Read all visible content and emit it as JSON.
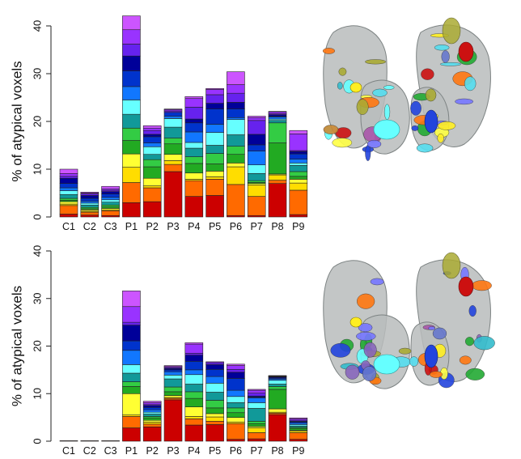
{
  "chart_data": [
    {
      "type": "bar",
      "stacked": true,
      "ylabel": "% of atypical voxels",
      "ylim": [
        0,
        40
      ],
      "yticks": [
        0,
        10,
        20,
        30,
        40
      ],
      "categories": [
        "C1",
        "C2",
        "C3",
        "P1",
        "P2",
        "P3",
        "P4",
        "P5",
        "P6",
        "P7",
        "P8",
        "P9"
      ],
      "segment_colors": [
        "#cc0000",
        "#ff6a00",
        "#ffdd00",
        "#ffff33",
        "#22aa22",
        "#33cc44",
        "#119999",
        "#66ffff",
        "#1177ff",
        "#0033cc",
        "#000099",
        "#6622ee",
        "#9933ff",
        "#cc55ff"
      ],
      "stacks": [
        [
          0.6,
          1.8,
          0.3,
          0.5,
          0.3,
          0.4,
          0.8,
          0.8,
          0.6,
          0.9,
          1.1,
          0.4,
          0.6,
          0.9
        ],
        [
          0.4,
          0.6,
          0.2,
          0.3,
          0.2,
          0.3,
          0.5,
          0.4,
          0.4,
          0.6,
          0.6,
          0.3,
          0.2,
          0.2
        ],
        [
          0.3,
          1.0,
          0.2,
          0.3,
          0.3,
          0.4,
          0.6,
          0.5,
          0.5,
          0.7,
          0.5,
          0.3,
          0.3,
          0.5
        ],
        [
          3.0,
          4.2,
          3.2,
          2.8,
          2.8,
          2.6,
          2.9,
          3.0,
          2.8,
          3.3,
          3.1,
          2.5,
          3.0,
          2.9
        ],
        [
          3.2,
          2.9,
          0.4,
          1.6,
          2.4,
          1.5,
          1.1,
          1.6,
          0.8,
          1.3,
          0.5,
          0.8,
          0.5,
          0.5
        ],
        [
          9.5,
          1.5,
          0.8,
          1.3,
          2.2,
          1.2,
          2.3,
          1.8,
          0.5,
          0.8,
          0.0,
          0.3,
          0.3,
          0.1
        ],
        [
          4.3,
          3.3,
          0.3,
          1.3,
          2.0,
          1.4,
          1.8,
          1.2,
          2.2,
          1.9,
          0.8,
          2.5,
          1.8,
          0.4
        ],
        [
          4.5,
          3.4,
          0.5,
          1.2,
          1.5,
          2.2,
          1.7,
          2.7,
          1.7,
          3.2,
          1.2,
          1.8,
          1.1,
          0.2
        ],
        [
          0.3,
          6.5,
          3.7,
          0.8,
          1.8,
          1.7,
          2.4,
          3.2,
          0.4,
          1.8,
          1.4,
          1.9,
          1.8,
          2.7
        ],
        [
          0.3,
          4.0,
          2.4,
          0.3,
          0.2,
          0.4,
          1.5,
          1.8,
          2.9,
          1.3,
          2.2,
          2.9,
          0.6,
          0.3
        ],
        [
          7.0,
          0.7,
          1.1,
          0.2,
          6.5,
          4.2,
          0.5,
          0.3,
          0.4,
          0.2,
          0.3,
          0.2,
          0.4,
          0.1
        ],
        [
          0.5,
          5.1,
          1.5,
          0.8,
          0.6,
          1.0,
          1.3,
          0.5,
          0.8,
          1.1,
          0.5,
          0.2,
          3.5,
          0.7
        ]
      ]
    },
    {
      "type": "bar",
      "stacked": true,
      "ylabel": "% of atypical voxels",
      "ylim": [
        0,
        40
      ],
      "yticks": [
        0,
        10,
        20,
        30,
        40
      ],
      "categories": [
        "C1",
        "C2",
        "C3",
        "P1",
        "P2",
        "P3",
        "P4",
        "P5",
        "P6",
        "P7",
        "P8",
        "P9"
      ],
      "segment_colors": [
        "#cc0000",
        "#ff6a00",
        "#ffdd00",
        "#ffff33",
        "#22aa22",
        "#33cc44",
        "#119999",
        "#66ffff",
        "#1177ff",
        "#0033cc",
        "#000099",
        "#6622ee",
        "#9933ff",
        "#cc55ff"
      ],
      "stacks": [
        [
          0.1
        ],
        [
          0.1
        ],
        [
          0.1
        ],
        [
          2.8,
          2.4,
          0.3,
          4.5,
          1.5,
          1.0,
          1.8,
          1.8,
          3.0,
          2.0,
          3.3,
          0.6,
          3.3,
          3.3
        ],
        [
          3.0,
          0.6,
          0.4,
          0.4,
          0.5,
          0.3,
          0.5,
          0.4,
          0.5,
          0.5,
          0.4,
          0.2,
          0.4,
          0.3
        ],
        [
          8.7,
          0.3,
          0.2,
          0.4,
          0.8,
          1.0,
          1.7,
          0.8,
          0.7,
          0.4,
          0.3,
          0.2,
          0.2,
          0.2
        ],
        [
          3.4,
          1.3,
          0.5,
          2.0,
          1.8,
          1.4,
          1.6,
          2.0,
          1.0,
          1.8,
          1.3,
          0.4,
          1.9,
          0.3
        ],
        [
          3.5,
          0.7,
          0.9,
          0.7,
          1.2,
          1.6,
          1.7,
          1.9,
          1.4,
          1.5,
          1.0,
          0.4,
          0.2,
          0.0
        ],
        [
          0.4,
          3.3,
          0.3,
          1.0,
          1.0,
          1.0,
          1.1,
          1.3,
          1.3,
          2.5,
          1.3,
          0.6,
          0.8,
          0.3
        ],
        [
          0.5,
          1.3,
          1.0,
          0.3,
          0.6,
          0.5,
          2.7,
          1.2,
          1.0,
          0.2,
          0.2,
          0.6,
          0.6,
          0.2
        ],
        [
          5.6,
          0.3,
          0.2,
          0.7,
          4.1,
          0.6,
          0.5,
          0.8,
          0.3,
          0.2,
          0.2,
          0.1,
          0.1,
          0.1
        ],
        [
          0.4,
          1.4,
          0.3,
          0.2,
          0.4,
          0.2,
          0.3,
          0.3,
          0.3,
          0.3,
          0.1,
          0.2,
          0.3,
          0.2
        ]
      ]
    }
  ],
  "brain_panels": [
    {
      "segment_colors": [
        "#ffee22",
        "#6677cc",
        "#33bbcc",
        "#cc1111",
        "#22aa33",
        "#ff7711",
        "#66ffff",
        "#2244dd",
        "#8866bb",
        "#aaaa33",
        "#55ddee",
        "#7777ff",
        "#cc8833",
        "#aa55aa",
        "#ffff44"
      ]
    },
    {
      "segment_colors": [
        "#ffee22",
        "#6677cc",
        "#33bbcc",
        "#cc1111",
        "#22aa33",
        "#ff7711",
        "#66ffff",
        "#2244dd",
        "#8866bb",
        "#aaaa33",
        "#55ddee",
        "#7777ff",
        "#cc8833",
        "#aa55aa",
        "#ffff44"
      ]
    }
  ]
}
